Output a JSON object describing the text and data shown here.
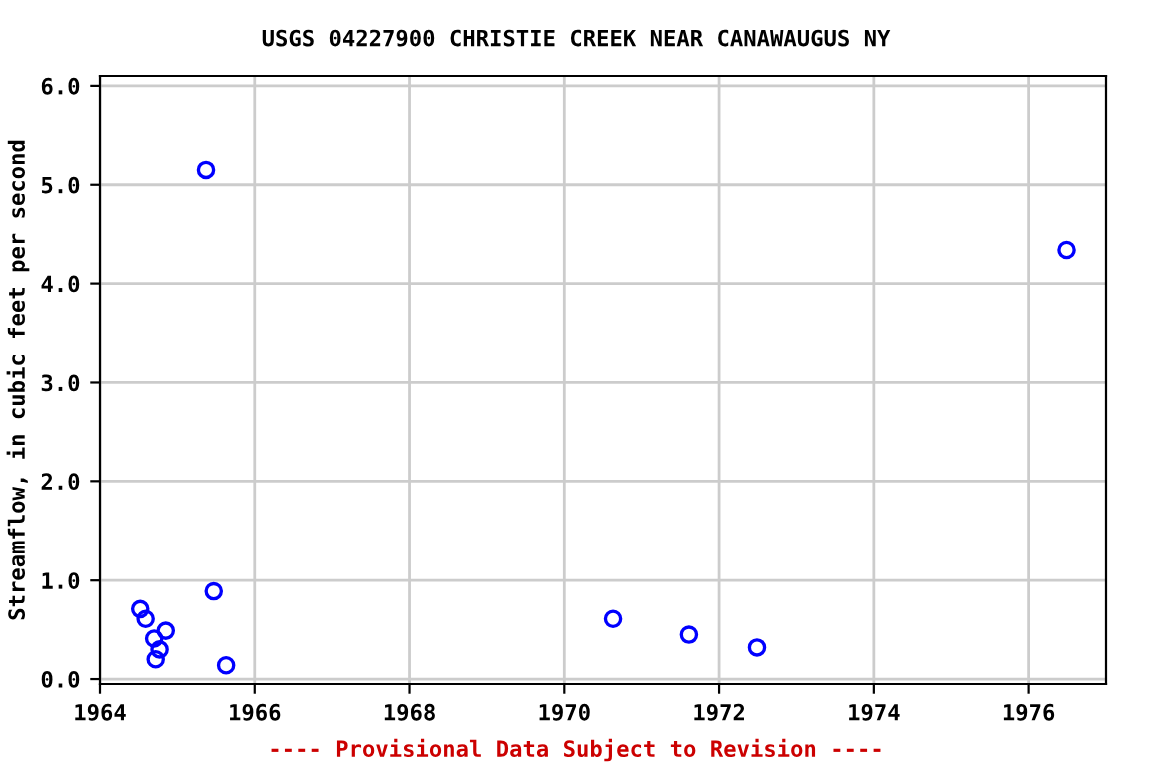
{
  "chart_data": {
    "type": "scatter",
    "title": "USGS 04227900 CHRISTIE CREEK NEAR CANAWAUGUS NY",
    "ylabel": "Streamflow, in cubic feet per second",
    "annotations": [
      "---- Provisional Data Subject to Revision ----"
    ],
    "x": [
      1964.52,
      1964.59,
      1964.7,
      1964.72,
      1964.77,
      1964.85,
      1965.37,
      1965.47,
      1965.63,
      1970.63,
      1971.61,
      1972.49,
      1976.49
    ],
    "series": [
      {
        "color": "#0000ff",
        "values": [
          0.71,
          0.61,
          0.41,
          0.2,
          0.3,
          0.49,
          5.15,
          0.89,
          0.14,
          0.61,
          0.45,
          0.32,
          4.34
        ]
      }
    ],
    "xlim": [
      1964,
      1977
    ],
    "xticks": [
      1964,
      1966,
      1968,
      1970,
      1972,
      1974,
      1976
    ],
    "ylim": [
      -0.05,
      6.1
    ],
    "yticks": [
      {
        "value": 0,
        "label": "0.0"
      },
      {
        "value": 1,
        "label": "1.0"
      },
      {
        "value": 2,
        "label": "2.0"
      },
      {
        "value": 3,
        "label": "3.0"
      },
      {
        "value": 4,
        "label": "4.0"
      },
      {
        "value": 5,
        "label": "5.0"
      },
      {
        "value": 6,
        "label": "6.0"
      }
    ],
    "grid": true,
    "marker": "circle"
  }
}
